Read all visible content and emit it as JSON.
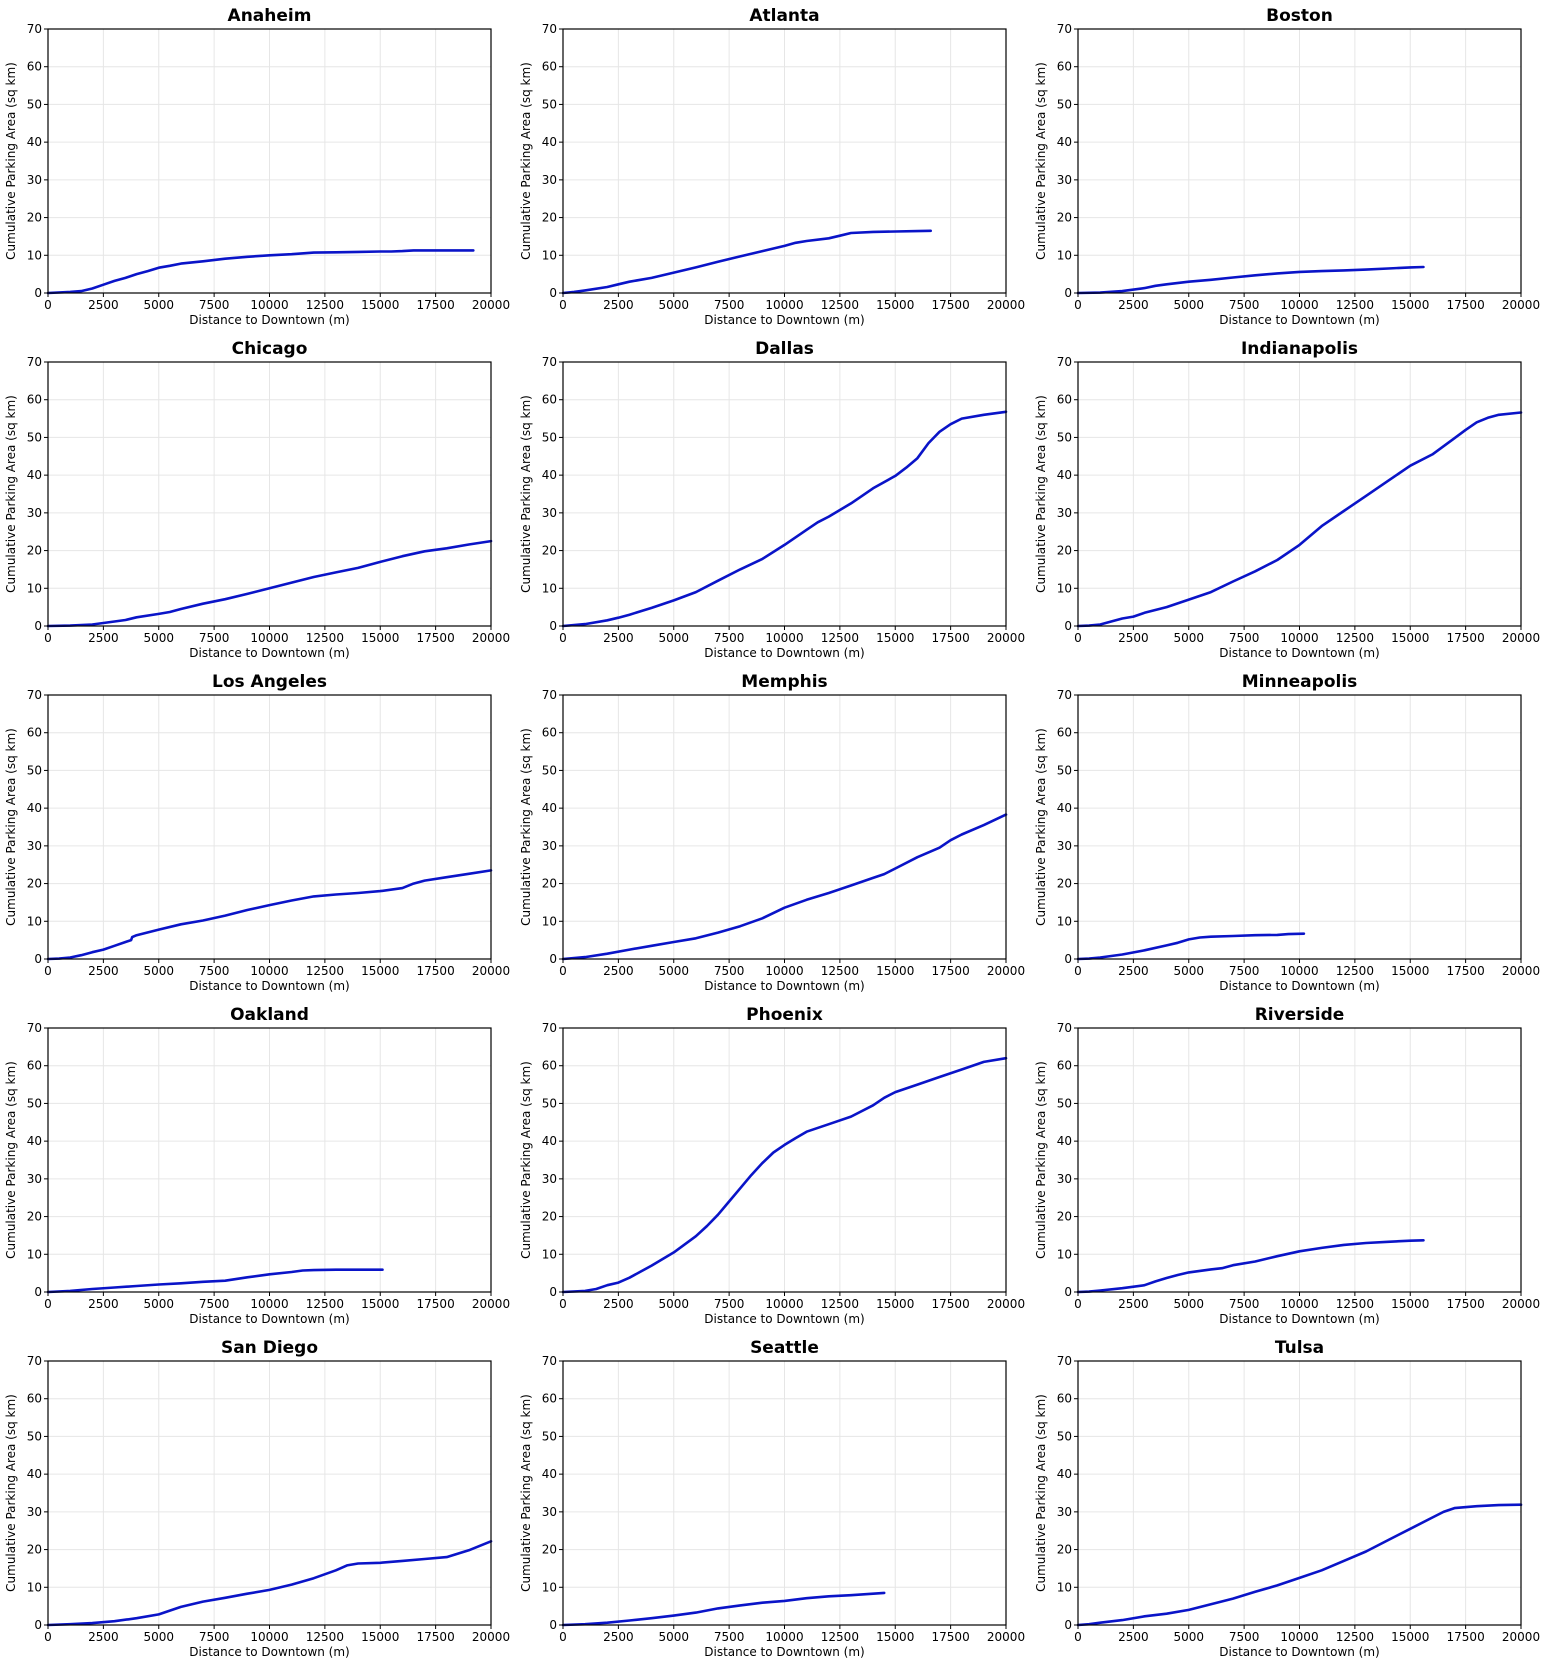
{
  "colors": {
    "series": "#0a14c8",
    "grid": "#e6e6e6"
  },
  "chart_data": [
    {
      "type": "line",
      "title": "Anaheim",
      "xlabel": "Distance to Downtown (m)",
      "ylabel": "Cumulative Parking Area (sq km)",
      "xlim": [
        0,
        20000
      ],
      "ylim": [
        0,
        70
      ],
      "grid": true,
      "x": [
        0,
        1000,
        1500,
        2000,
        2500,
        3000,
        3500,
        4000,
        4500,
        5000,
        5500,
        6000,
        7000,
        8000,
        9000,
        10000,
        11000,
        12000,
        13000,
        14000,
        15000,
        15500,
        16000,
        16500,
        17000,
        18000,
        19200
      ],
      "y": [
        0,
        0.3,
        0.5,
        1.2,
        2.2,
        3.2,
        4.0,
        5.0,
        5.8,
        6.7,
        7.2,
        7.8,
        8.4,
        9.1,
        9.6,
        10.0,
        10.3,
        10.7,
        10.8,
        10.9,
        11.0,
        11.0,
        11.1,
        11.3,
        11.3,
        11.3,
        11.3
      ]
    },
    {
      "type": "line",
      "title": "Atlanta",
      "xlabel": "Distance to Downtown (m)",
      "ylabel": "Cumulative Parking Area (sq km)",
      "xlim": [
        0,
        20000
      ],
      "ylim": [
        0,
        70
      ],
      "grid": true,
      "x": [
        0,
        500,
        1000,
        2000,
        2500,
        3000,
        4000,
        5000,
        6000,
        7000,
        8000,
        9000,
        10000,
        10500,
        11000,
        12000,
        12500,
        13000,
        14000,
        15000,
        16000,
        16600
      ],
      "y": [
        0,
        0.3,
        0.7,
        1.6,
        2.3,
        3.0,
        4.0,
        5.4,
        6.8,
        8.3,
        9.7,
        11.1,
        12.5,
        13.3,
        13.8,
        14.5,
        15.2,
        15.9,
        16.2,
        16.3,
        16.4,
        16.5
      ]
    },
    {
      "type": "line",
      "title": "Boston",
      "xlabel": "Distance to Downtown (m)",
      "ylabel": "Cumulative Parking Area (sq km)",
      "xlim": [
        0,
        20000
      ],
      "ylim": [
        0,
        70
      ],
      "grid": true,
      "x": [
        0,
        1000,
        2000,
        3000,
        3500,
        4000,
        5000,
        6000,
        7000,
        8000,
        9000,
        10000,
        11000,
        12000,
        13000,
        14000,
        15000,
        15600
      ],
      "y": [
        0,
        0.1,
        0.5,
        1.3,
        1.9,
        2.3,
        3.0,
        3.5,
        4.1,
        4.7,
        5.2,
        5.6,
        5.8,
        6.0,
        6.2,
        6.5,
        6.8,
        6.9
      ]
    },
    {
      "type": "line",
      "title": "Chicago",
      "xlabel": "Distance to Downtown (m)",
      "ylabel": "Cumulative Parking Area (sq km)",
      "xlim": [
        0,
        20000
      ],
      "ylim": [
        0,
        70
      ],
      "grid": true,
      "x": [
        0,
        1000,
        2000,
        2500,
        3000,
        3500,
        4000,
        5000,
        5500,
        6000,
        7000,
        8000,
        9000,
        10000,
        11000,
        12000,
        13000,
        14000,
        15000,
        16000,
        17000,
        18000,
        19000,
        20000
      ],
      "y": [
        0,
        0.1,
        0.4,
        0.8,
        1.2,
        1.6,
        2.3,
        3.2,
        3.7,
        4.5,
        5.9,
        7.1,
        8.5,
        10.0,
        11.5,
        13.0,
        14.2,
        15.4,
        17.0,
        18.5,
        19.8,
        20.6,
        21.6,
        22.5
      ]
    },
    {
      "type": "line",
      "title": "Dallas",
      "xlabel": "Distance to Downtown (m)",
      "ylabel": "Cumulative Parking Area (sq km)",
      "xlim": [
        0,
        20000
      ],
      "ylim": [
        0,
        70
      ],
      "grid": true,
      "x": [
        0,
        1000,
        2000,
        2500,
        3000,
        4000,
        5000,
        6000,
        7000,
        8000,
        9000,
        10000,
        11000,
        11500,
        12000,
        13000,
        13500,
        14000,
        15000,
        15500,
        16000,
        16500,
        17000,
        17500,
        18000,
        19000,
        20000
      ],
      "y": [
        0,
        0.5,
        1.5,
        2.2,
        3.0,
        4.8,
        6.8,
        9.0,
        12.0,
        15.0,
        17.8,
        21.5,
        25.5,
        27.5,
        29.0,
        32.5,
        34.5,
        36.5,
        39.8,
        42.0,
        44.5,
        48.5,
        51.5,
        53.5,
        55.0,
        56.0,
        56.8
      ]
    },
    {
      "type": "line",
      "title": "Indianapolis",
      "xlabel": "Distance to Downtown (m)",
      "ylabel": "Cumulative Parking Area (sq km)",
      "xlim": [
        0,
        20000
      ],
      "ylim": [
        0,
        70
      ],
      "grid": true,
      "x": [
        0,
        500,
        1000,
        1500,
        2000,
        2500,
        3000,
        4000,
        5000,
        6000,
        7000,
        8000,
        9000,
        10000,
        10500,
        11000,
        12000,
        13000,
        14000,
        15000,
        16000,
        17000,
        17500,
        18000,
        18500,
        19000,
        20000
      ],
      "y": [
        0,
        0.1,
        0.4,
        1.2,
        2.0,
        2.5,
        3.5,
        5.0,
        7.0,
        9.0,
        11.8,
        14.5,
        17.5,
        21.5,
        24.0,
        26.5,
        30.5,
        34.5,
        38.5,
        42.5,
        45.5,
        49.8,
        52.0,
        54.0,
        55.2,
        56.0,
        56.6
      ]
    },
    {
      "type": "line",
      "title": "Los Angeles",
      "xlabel": "Distance to Downtown (m)",
      "ylabel": "Cumulative Parking Area (sq km)",
      "xlim": [
        0,
        20000
      ],
      "ylim": [
        0,
        70
      ],
      "grid": true,
      "x": [
        0,
        500,
        1000,
        1500,
        2000,
        2500,
        3000,
        3500,
        3750,
        3800,
        4000,
        5000,
        6000,
        7000,
        8000,
        9000,
        10000,
        11000,
        12000,
        13000,
        14000,
        15000,
        16000,
        16500,
        17000,
        18000,
        19000,
        20000
      ],
      "y": [
        0,
        0.1,
        0.4,
        1.0,
        1.8,
        2.5,
        3.5,
        4.5,
        5.0,
        5.8,
        6.3,
        7.8,
        9.2,
        10.2,
        11.5,
        13.0,
        14.3,
        15.5,
        16.6,
        17.1,
        17.5,
        18.0,
        18.8,
        20.0,
        20.8,
        21.7,
        22.6,
        23.5
      ]
    },
    {
      "type": "line",
      "title": "Memphis",
      "xlabel": "Distance to Downtown (m)",
      "ylabel": "Cumulative Parking Area (sq km)",
      "xlim": [
        0,
        20000
      ],
      "ylim": [
        0,
        70
      ],
      "grid": true,
      "x": [
        0,
        1000,
        2000,
        3000,
        4000,
        5000,
        6000,
        7000,
        8000,
        9000,
        10000,
        11000,
        12000,
        13000,
        14000,
        14500,
        15000,
        16000,
        17000,
        17500,
        18000,
        19000,
        20000
      ],
      "y": [
        0,
        0.5,
        1.4,
        2.5,
        3.5,
        4.5,
        5.5,
        7.0,
        8.7,
        10.8,
        13.6,
        15.7,
        17.5,
        19.5,
        21.5,
        22.5,
        24.0,
        27.0,
        29.5,
        31.5,
        33.0,
        35.5,
        38.3
      ]
    },
    {
      "type": "line",
      "title": "Minneapolis",
      "xlabel": "Distance to Downtown (m)",
      "ylabel": "Cumulative Parking Area (sq km)",
      "xlim": [
        0,
        20000
      ],
      "ylim": [
        0,
        70
      ],
      "grid": true,
      "x": [
        0,
        500,
        1000,
        2000,
        3000,
        4000,
        4500,
        5000,
        5500,
        6000,
        7000,
        8000,
        9000,
        9500,
        10200
      ],
      "y": [
        0,
        0.1,
        0.4,
        1.2,
        2.3,
        3.6,
        4.3,
        5.2,
        5.7,
        5.9,
        6.1,
        6.3,
        6.4,
        6.6,
        6.7
      ]
    },
    {
      "type": "line",
      "title": "Oakland",
      "xlabel": "Distance to Downtown (m)",
      "ylabel": "Cumulative Parking Area (sq km)",
      "xlim": [
        0,
        20000
      ],
      "ylim": [
        0,
        70
      ],
      "grid": true,
      "x": [
        0,
        1000,
        2000,
        3000,
        4000,
        5000,
        6000,
        7000,
        8000,
        9000,
        10000,
        11000,
        11500,
        12000,
        13000,
        14000,
        15100
      ],
      "y": [
        0,
        0.3,
        0.8,
        1.2,
        1.6,
        2.0,
        2.3,
        2.7,
        3.0,
        3.9,
        4.7,
        5.3,
        5.7,
        5.8,
        5.9,
        5.9,
        5.9
      ]
    },
    {
      "type": "line",
      "title": "Phoenix",
      "xlabel": "Distance to Downtown (m)",
      "ylabel": "Cumulative Parking Area (sq km)",
      "xlim": [
        0,
        20000
      ],
      "ylim": [
        0,
        70
      ],
      "grid": true,
      "x": [
        0,
        1000,
        1500,
        2000,
        2500,
        3000,
        4000,
        5000,
        6000,
        6500,
        7000,
        7500,
        8000,
        8500,
        9000,
        9500,
        10000,
        10500,
        11000,
        12000,
        13000,
        14000,
        14500,
        15000,
        16000,
        17000,
        18000,
        19000,
        20000
      ],
      "y": [
        0,
        0.3,
        0.8,
        1.8,
        2.5,
        3.8,
        7.0,
        10.5,
        14.8,
        17.5,
        20.5,
        24.0,
        27.5,
        31.0,
        34.2,
        37.0,
        39.0,
        40.8,
        42.5,
        44.5,
        46.5,
        49.5,
        51.5,
        53.0,
        55.0,
        57.0,
        59.0,
        61.0,
        62.0
      ]
    },
    {
      "type": "line",
      "title": "Riverside",
      "xlabel": "Distance to Downtown (m)",
      "ylabel": "Cumulative Parking Area (sq km)",
      "xlim": [
        0,
        20000
      ],
      "ylim": [
        0,
        70
      ],
      "grid": true,
      "x": [
        0,
        500,
        1000,
        2000,
        3000,
        3500,
        4000,
        4500,
        5000,
        6000,
        6500,
        7000,
        8000,
        9000,
        10000,
        11000,
        12000,
        13000,
        14000,
        15000,
        15600
      ],
      "y": [
        0,
        0.1,
        0.4,
        1.0,
        1.8,
        2.8,
        3.7,
        4.5,
        5.2,
        6.0,
        6.3,
        7.1,
        8.1,
        9.5,
        10.8,
        11.7,
        12.5,
        13.0,
        13.3,
        13.6,
        13.7
      ]
    },
    {
      "type": "line",
      "title": "San Diego",
      "xlabel": "Distance to Downtown (m)",
      "ylabel": "Cumulative Parking Area (sq km)",
      "xlim": [
        0,
        20000
      ],
      "ylim": [
        0,
        70
      ],
      "grid": true,
      "x": [
        0,
        1000,
        2000,
        3000,
        4000,
        5000,
        6000,
        7000,
        8000,
        9000,
        10000,
        11000,
        12000,
        13000,
        13500,
        14000,
        15000,
        16000,
        17000,
        18000,
        19000,
        19500,
        20000
      ],
      "y": [
        0,
        0.2,
        0.5,
        1.0,
        1.8,
        2.8,
        4.8,
        6.2,
        7.2,
        8.3,
        9.3,
        10.7,
        12.4,
        14.5,
        15.8,
        16.3,
        16.5,
        17.0,
        17.5,
        18.0,
        19.8,
        21.0,
        22.2
      ]
    },
    {
      "type": "line",
      "title": "Seattle",
      "xlabel": "Distance to Downtown (m)",
      "ylabel": "Cumulative Parking Area (sq km)",
      "xlim": [
        0,
        20000
      ],
      "ylim": [
        0,
        70
      ],
      "grid": true,
      "x": [
        0,
        1000,
        2000,
        3000,
        4000,
        5000,
        6000,
        7000,
        8000,
        9000,
        10000,
        11000,
        12000,
        13000,
        14000,
        14500
      ],
      "y": [
        0,
        0.2,
        0.6,
        1.2,
        1.8,
        2.5,
        3.3,
        4.4,
        5.2,
        5.9,
        6.4,
        7.1,
        7.6,
        7.9,
        8.3,
        8.5
      ]
    },
    {
      "type": "line",
      "title": "Tulsa",
      "xlabel": "Distance to Downtown (m)",
      "ylabel": "Cumulative Parking Area (sq km)",
      "xlim": [
        0,
        20000
      ],
      "ylim": [
        0,
        70
      ],
      "grid": true,
      "x": [
        0,
        500,
        1000,
        2000,
        3000,
        4000,
        5000,
        6000,
        7000,
        8000,
        9000,
        10000,
        11000,
        12000,
        13000,
        14000,
        15000,
        16000,
        16500,
        17000,
        18000,
        19000,
        20000
      ],
      "y": [
        0,
        0.2,
        0.6,
        1.3,
        2.3,
        3.0,
        4.0,
        5.5,
        7.0,
        8.8,
        10.5,
        12.5,
        14.5,
        17.0,
        19.5,
        22.5,
        25.5,
        28.5,
        30.0,
        31.0,
        31.5,
        31.8,
        31.9
      ]
    }
  ]
}
